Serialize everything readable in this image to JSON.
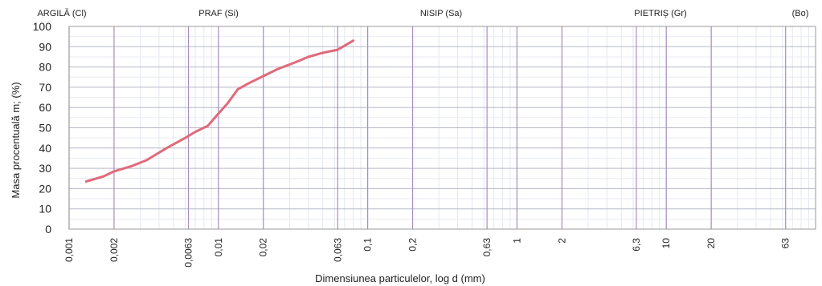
{
  "chart_data": {
    "type": "line",
    "zones": [
      "ARGILĂ (Cl)",
      "PRAF (Si)",
      "NISIP (Sa)",
      "PIETRIȘ (Gr)",
      "(Bo)"
    ],
    "xlabel": "Dimensiunea particulelor, log d (mm)",
    "ylabel": "Masa procentuală m; (%)",
    "ylim": [
      0,
      100
    ],
    "yticks": [
      "100",
      "90",
      "80",
      "70",
      "60",
      "50",
      "40",
      "30",
      "20",
      "10",
      "0"
    ],
    "xticks": [
      "0,001",
      "0,002",
      "0,0063",
      "0,01",
      "0,02",
      "0,063",
      "0,1",
      "0,2",
      "0,63",
      "1",
      "2",
      "6,3",
      "10",
      "20",
      "63"
    ],
    "x_scale": "log",
    "grid": true,
    "line_color": "#e06a7a",
    "series": [
      {
        "x": [
          0.0013,
          0.0017,
          0.002,
          0.0026,
          0.0033,
          0.0045,
          0.006,
          0.007,
          0.0085,
          0.01,
          0.0115,
          0.0135,
          0.016,
          0.02,
          0.025,
          0.032,
          0.04,
          0.05,
          0.063,
          0.08
        ],
        "y": [
          23.5,
          26,
          28.5,
          31,
          34,
          40,
          45,
          48,
          51,
          57,
          62,
          69,
          72,
          75.5,
          79,
          82,
          85,
          87,
          88.5,
          93
        ]
      }
    ]
  }
}
